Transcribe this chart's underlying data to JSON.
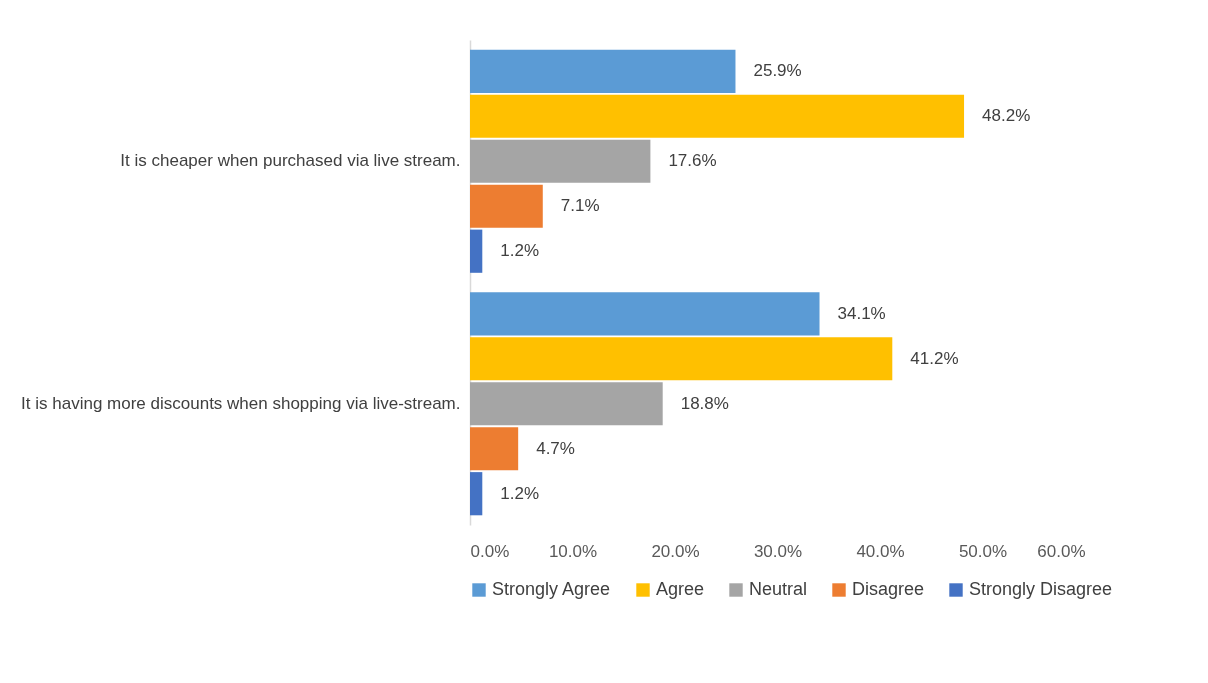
{
  "chart_data": {
    "type": "bar",
    "orientation": "horizontal",
    "categories": [
      "It is cheaper when purchased via live stream.",
      "It is having more discounts when shopping via live-stream."
    ],
    "series": [
      {
        "name": "Strongly Agree",
        "color": "#5b9bd5",
        "values": [
          25.9,
          34.1
        ],
        "value_labels": [
          "25.9%",
          "34.1%"
        ]
      },
      {
        "name": "Agree",
        "color": "#ffc000",
        "values": [
          48.2,
          41.2
        ],
        "value_labels": [
          "48.2%",
          "41.2%"
        ]
      },
      {
        "name": "Neutral",
        "color": "#a5a5a5",
        "values": [
          17.6,
          18.8
        ],
        "value_labels": [
          "17.6%",
          "18.8%"
        ]
      },
      {
        "name": "Disagree",
        "color": "#ed7d31",
        "values": [
          7.1,
          4.7
        ],
        "value_labels": [
          "7.1%",
          "4.7%"
        ]
      },
      {
        "name": "Strongly Disagree",
        "color": "#4472c4",
        "values": [
          1.2,
          1.2
        ],
        "value_labels": [
          "1.2%",
          "1.2%"
        ]
      }
    ],
    "xlim": [
      0,
      60
    ],
    "xticks": [
      {
        "value": 0,
        "label": "0.0%"
      },
      {
        "value": 10,
        "label": "10.0%"
      },
      {
        "value": 20,
        "label": "20.0%"
      },
      {
        "value": 30,
        "label": "30.0%"
      },
      {
        "value": 40,
        "label": "40.0%"
      },
      {
        "value": 50,
        "label": "50.0%"
      },
      {
        "value": 60,
        "label": "60.0%"
      }
    ],
    "grid": false,
    "legend": "bottom"
  }
}
